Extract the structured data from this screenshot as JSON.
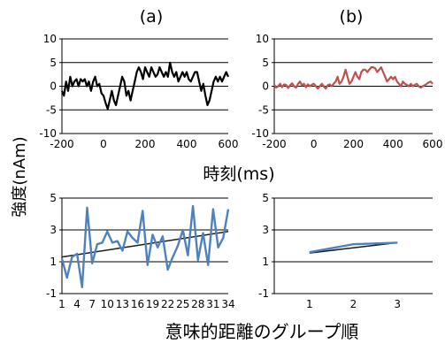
{
  "shared_labels": {
    "ylabel": "強度(nAm)",
    "xlabel_top": "時刻(ms)",
    "xlabel_bottom": "意味的距離のグループ順"
  },
  "chart_data": [
    {
      "type": "line",
      "title": "(a)",
      "xlim": [
        -200,
        600
      ],
      "ylim": [
        -10,
        10
      ],
      "xticks": [
        -200,
        0,
        200,
        400,
        600
      ],
      "yticks": [
        -10,
        -5,
        0,
        5,
        10
      ],
      "grid": "horizontal",
      "color": "#000000",
      "series": [
        {
          "x": [
            -200,
            -190,
            -180,
            -170,
            -160,
            -150,
            -140,
            -130,
            -120,
            -110,
            -100,
            -90,
            -80,
            -70,
            -60,
            -50,
            -40,
            -30,
            -20,
            -10,
            0,
            10,
            20,
            30,
            40,
            50,
            60,
            70,
            80,
            90,
            100,
            110,
            120,
            130,
            140,
            150,
            160,
            170,
            180,
            190,
            200,
            210,
            220,
            230,
            240,
            250,
            260,
            270,
            280,
            290,
            300,
            310,
            320,
            330,
            340,
            350,
            360,
            370,
            380,
            390,
            400,
            410,
            420,
            430,
            440,
            450,
            460,
            470,
            480,
            490,
            500,
            510,
            520,
            530,
            540,
            550,
            560,
            570,
            580,
            590,
            600
          ],
          "y": [
            -1,
            -2,
            1,
            -1,
            2,
            0,
            1,
            1.5,
            0,
            1.5,
            1,
            1.5,
            0,
            1,
            -1,
            1,
            2,
            0,
            0.5,
            -1.5,
            -2,
            -3.5,
            -4.8,
            -3,
            -1,
            -3,
            -4,
            -2,
            0,
            2,
            1,
            -2,
            -1,
            -3,
            -1,
            1,
            3,
            4,
            3,
            1.5,
            4,
            3,
            2,
            4,
            3,
            2,
            2.5,
            4,
            3,
            2,
            3,
            2,
            5,
            3,
            2,
            3,
            1,
            2,
            3,
            2,
            3,
            1.5,
            1,
            2,
            3,
            3,
            1,
            -1,
            0.5,
            -2,
            -4,
            -3,
            -1,
            1,
            2,
            1,
            2,
            1,
            2,
            3,
            2
          ]
        }
      ]
    },
    {
      "type": "line",
      "title": "(b)",
      "xlim": [
        -200,
        600
      ],
      "ylim": [
        -10,
        10
      ],
      "xticks": [
        -200,
        0,
        200,
        400,
        600
      ],
      "yticks": [
        -10,
        -5,
        0,
        5,
        10
      ],
      "grid": "horizontal",
      "color": "#c0504d",
      "series": [
        {
          "x": [
            -200,
            -190,
            -180,
            -170,
            -160,
            -150,
            -140,
            -130,
            -120,
            -110,
            -100,
            -90,
            -80,
            -70,
            -60,
            -50,
            -40,
            -30,
            -20,
            -10,
            0,
            10,
            20,
            30,
            40,
            50,
            60,
            70,
            80,
            90,
            100,
            110,
            120,
            130,
            140,
            150,
            160,
            170,
            180,
            190,
            200,
            210,
            220,
            230,
            240,
            250,
            260,
            270,
            280,
            290,
            300,
            310,
            320,
            330,
            340,
            350,
            360,
            370,
            380,
            390,
            400,
            410,
            420,
            430,
            440,
            450,
            460,
            470,
            480,
            490,
            500,
            510,
            520,
            530,
            540,
            550,
            560,
            570,
            580,
            590,
            600
          ],
          "y": [
            0.3,
            -0.3,
            0,
            0.5,
            -0.2,
            0.4,
            0.3,
            -0.4,
            0.2,
            0.6,
            0,
            -0.3,
            0.5,
            1,
            0.2,
            0.5,
            -0.2,
            0.4,
            0,
            0.3,
            0.5,
            0,
            -0.5,
            0,
            0.5,
            0,
            -0.5,
            0.2,
            0.4,
            0,
            0.5,
            1,
            2,
            0.5,
            1,
            2,
            3.5,
            2,
            0.5,
            1,
            2,
            3,
            2,
            1.5,
            3,
            3.5,
            3.5,
            3,
            3.5,
            4,
            4,
            3.8,
            3,
            3.5,
            4,
            3,
            2,
            1,
            1.5,
            2,
            1.5,
            2,
            1,
            0.5,
            0,
            1,
            0.5,
            0.3,
            0,
            0.5,
            0,
            0.3,
            0.5,
            0,
            -0.3,
            0,
            0.2,
            0.5,
            0.8,
            1,
            0.5
          ]
        }
      ]
    },
    {
      "type": "line",
      "xlim": [
        1,
        34
      ],
      "ylim": [
        -1,
        5
      ],
      "xticks": [
        1,
        4,
        7,
        10,
        13,
        16,
        19,
        22,
        25,
        28,
        31,
        34
      ],
      "yticks": [
        -1,
        1,
        3,
        5
      ],
      "grid": "horizontal",
      "color": "#4f81bd",
      "trendline": {
        "x": [
          1,
          34
        ],
        "y": [
          1.3,
          2.9
        ]
      },
      "series": [
        {
          "x": [
            1,
            2,
            3,
            4,
            5,
            6,
            7,
            8,
            9,
            10,
            11,
            12,
            13,
            14,
            15,
            16,
            17,
            18,
            19,
            20,
            21,
            22,
            23,
            24,
            25,
            26,
            27,
            28,
            29,
            30,
            31,
            32,
            33,
            34
          ],
          "y": [
            1.2,
            0,
            1.3,
            1.5,
            -0.6,
            4.4,
            0.9,
            2.1,
            2.2,
            2.9,
            2.2,
            2.3,
            1.7,
            2.9,
            2.5,
            2.2,
            4.2,
            0.8,
            2.7,
            1.9,
            2.6,
            0.5,
            1.3,
            2.0,
            3.0,
            1.4,
            4.5,
            1.1,
            2.8,
            0.8,
            4.3,
            1.9,
            2.5,
            4.3
          ]
        }
      ]
    },
    {
      "type": "line",
      "xlim": [
        0.2,
        3.8
      ],
      "ylim": [
        -1,
        5
      ],
      "xticks": [
        1,
        2,
        3
      ],
      "yticks": [
        -1,
        1,
        3,
        5
      ],
      "grid": "horizontal",
      "color": "#4f81bd",
      "trendline": {
        "x": [
          1,
          3
        ],
        "y": [
          1.55,
          2.2
        ]
      },
      "series": [
        {
          "x": [
            1,
            2,
            3
          ],
          "y": [
            1.6,
            2.1,
            2.2
          ]
        }
      ]
    }
  ]
}
